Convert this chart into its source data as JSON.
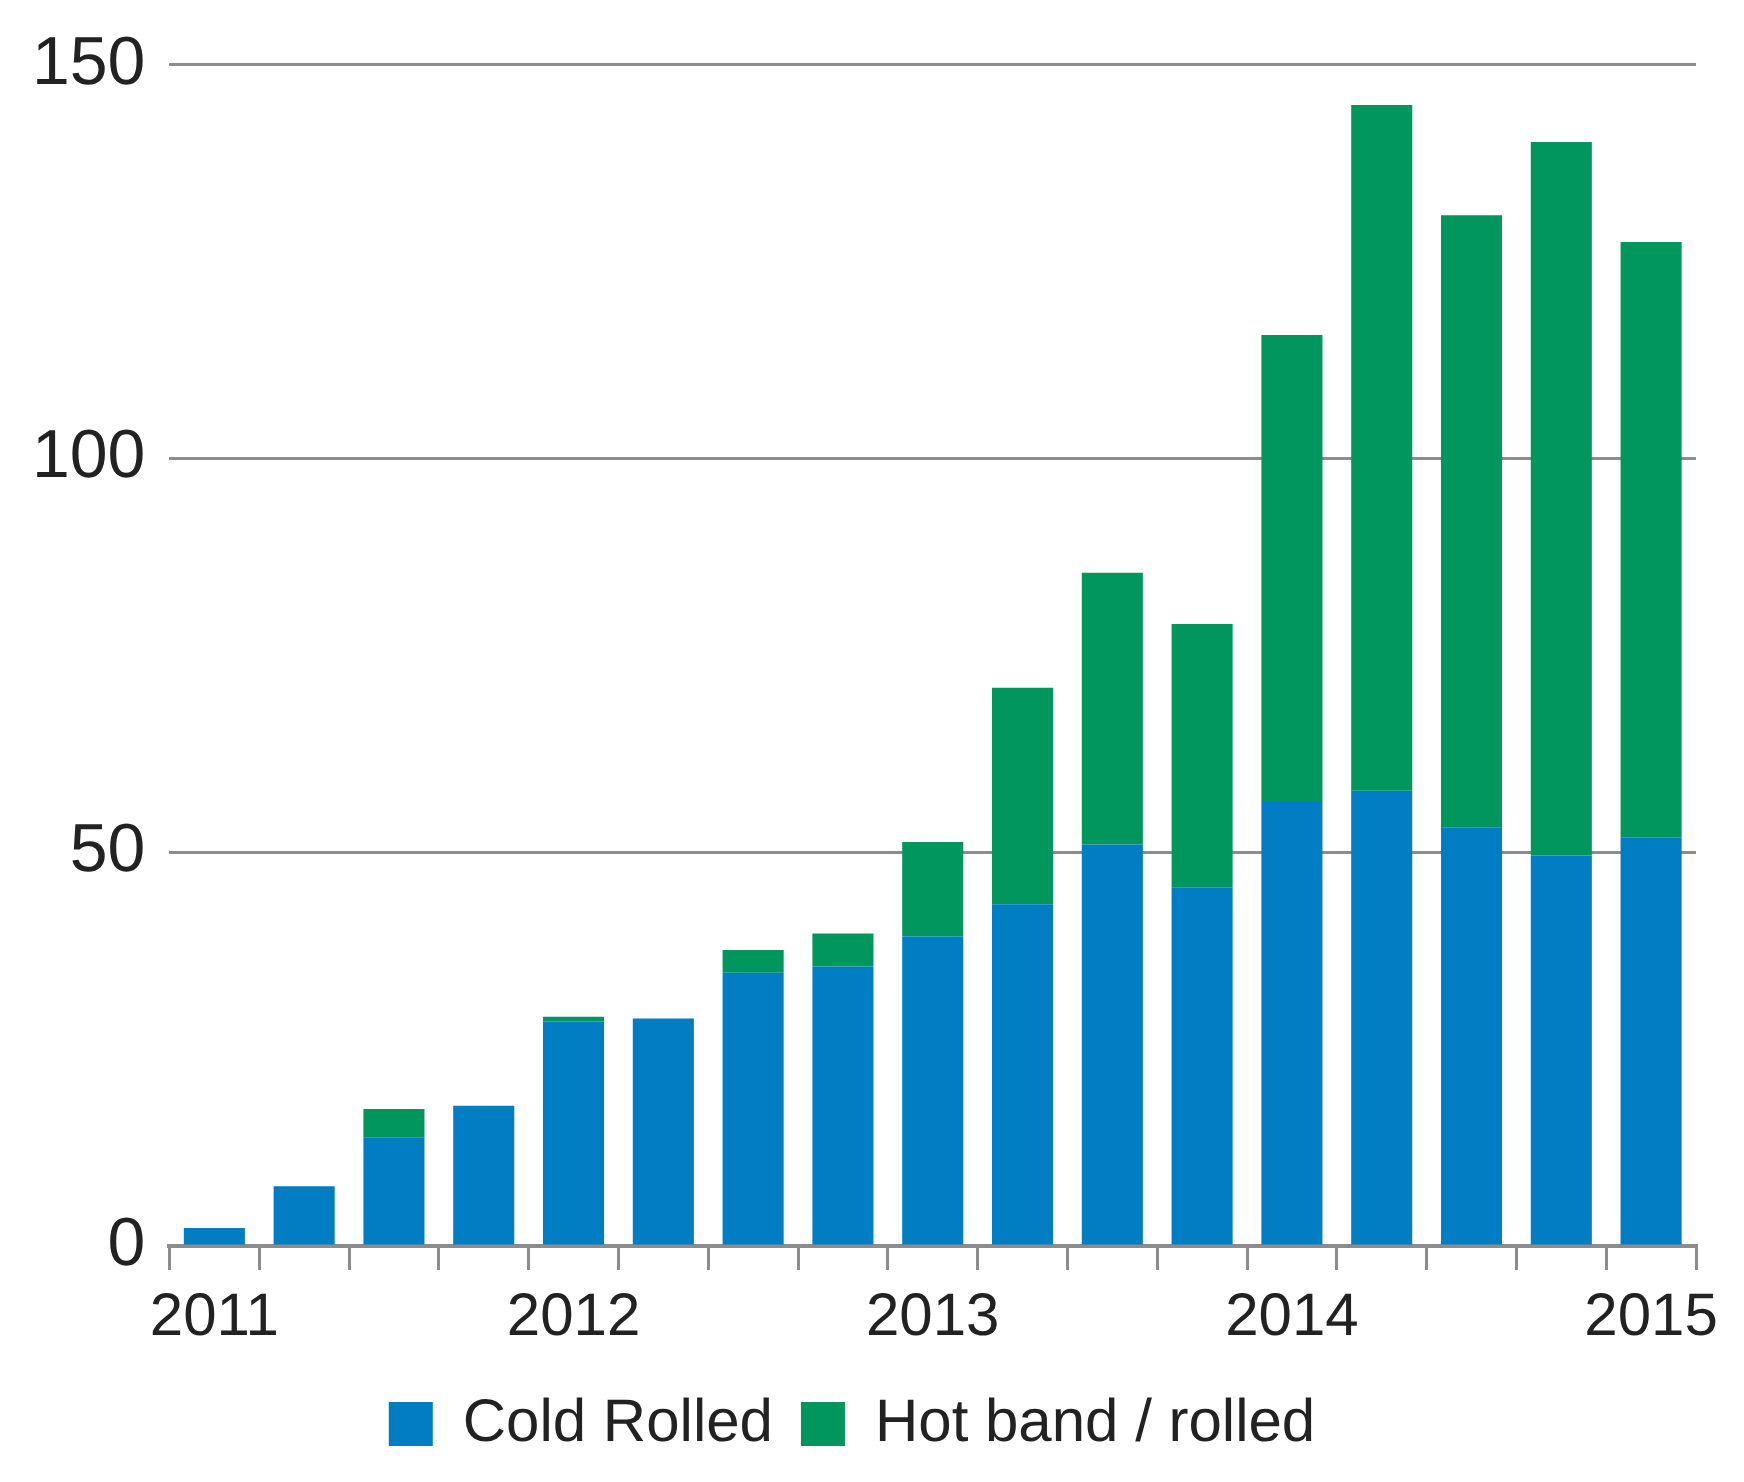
{
  "chart_data": {
    "type": "bar",
    "stacked": true,
    "categories": [
      "2011",
      null,
      null,
      null,
      "2012",
      null,
      null,
      null,
      "2013",
      null,
      null,
      null,
      "2014",
      null,
      null,
      null,
      "2015"
    ],
    "series": [
      {
        "name": "Cold Rolled",
        "color": "#007dc3",
        "values": [
          2.3,
          7.6,
          13.8,
          17.8,
          28.5,
          28.9,
          34.7,
          35.5,
          39.3,
          43.4,
          51.0,
          45.5,
          56.5,
          57.8,
          53.1,
          49.6,
          51.9
        ]
      },
      {
        "name": "Hot band / rolled",
        "color": "#00965e",
        "values": [
          0,
          0,
          3.6,
          0,
          0.6,
          0,
          2.9,
          4.2,
          12.0,
          27.5,
          34.5,
          33.5,
          59.2,
          87.1,
          77.8,
          90.6,
          75.6
        ]
      }
    ],
    "ylim": [
      0,
      150
    ],
    "yticks": [
      0,
      50,
      100,
      150
    ],
    "grid": "y",
    "legend": "bottom"
  }
}
